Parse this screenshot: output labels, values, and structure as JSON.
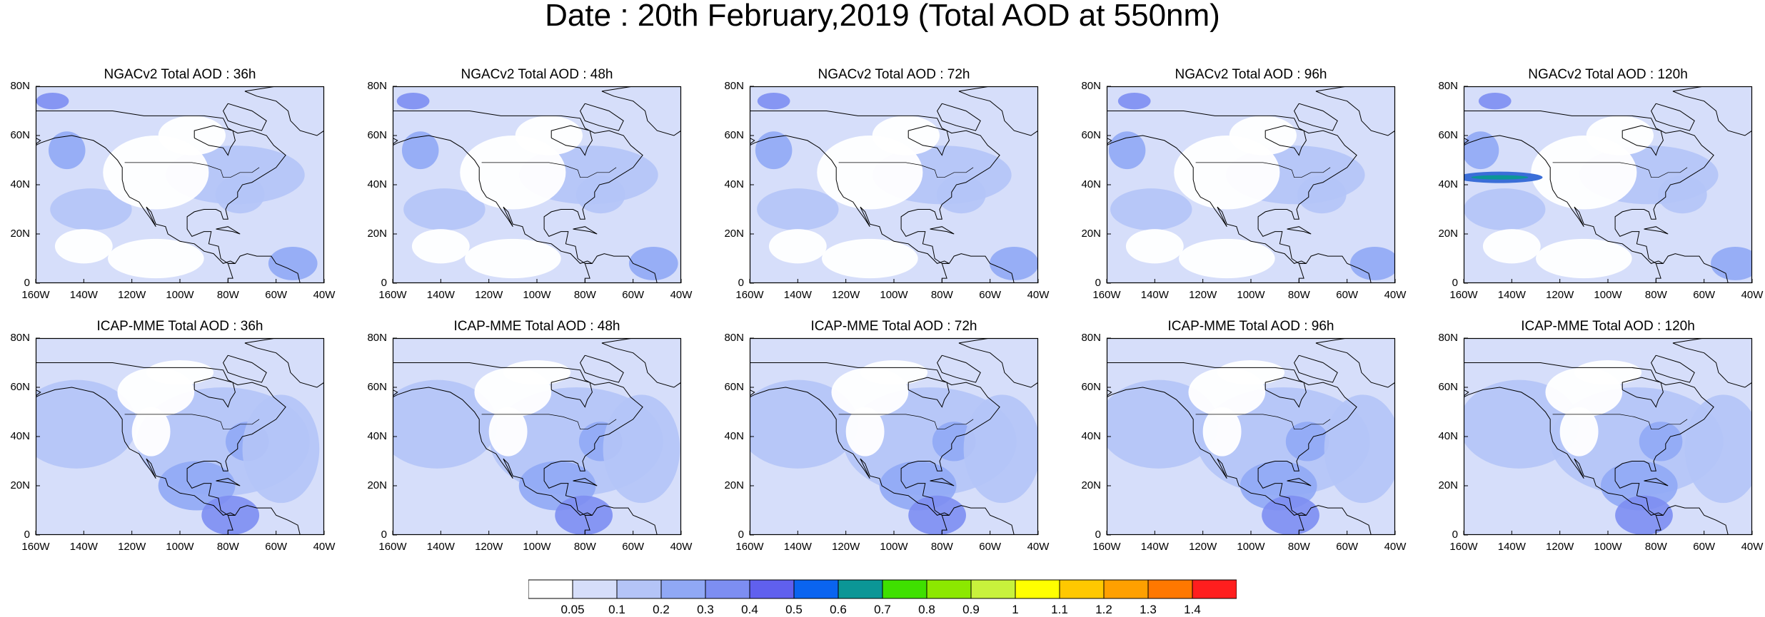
{
  "title": "Date : 20th February,2019 (Total AOD at 550nm)",
  "panels": [
    {
      "title": "NGACv2 Total AOD : 36h",
      "model": "NGAC",
      "hour": 36
    },
    {
      "title": "NGACv2 Total AOD : 48h",
      "model": "NGAC",
      "hour": 48
    },
    {
      "title": "NGACv2 Total AOD : 72h",
      "model": "NGAC",
      "hour": 72
    },
    {
      "title": "NGACv2 Total AOD : 96h",
      "model": "NGAC",
      "hour": 96
    },
    {
      "title": "NGACv2 Total AOD : 120h",
      "model": "NGAC",
      "hour": 120
    },
    {
      "title": "ICAP-MME Total AOD : 36h",
      "model": "ICAP",
      "hour": 36
    },
    {
      "title": "ICAP-MME Total AOD : 48h",
      "model": "ICAP",
      "hour": 48
    },
    {
      "title": "ICAP-MME Total AOD : 72h",
      "model": "ICAP",
      "hour": 72
    },
    {
      "title": "ICAP-MME Total AOD : 96h",
      "model": "ICAP",
      "hour": 96
    },
    {
      "title": "ICAP-MME Total AOD : 120h",
      "model": "ICAP",
      "hour": 120
    }
  ],
  "lat_labels": [
    "80N",
    "60N",
    "40N",
    "20N",
    "0"
  ],
  "lon_labels": [
    "160W",
    "140W",
    "120W",
    "100W",
    "80W",
    "60W",
    "40W"
  ],
  "colorbar": {
    "colors": [
      "#ffffff",
      "#d6defa",
      "#b4c4f7",
      "#90a8f5",
      "#7d8ef2",
      "#6060ee",
      "#0a64f0",
      "#0b9696",
      "#3fe000",
      "#8ce800",
      "#c8f23c",
      "#ffff00",
      "#ffc800",
      "#ffa000",
      "#ff7800",
      "#ff1e1e"
    ],
    "labels": [
      "0.05",
      "0.1",
      "0.2",
      "0.3",
      "0.4",
      "0.5",
      "0.6",
      "0.7",
      "0.8",
      "0.9",
      "1",
      "1.1",
      "1.2",
      "1.3",
      "1.4"
    ]
  },
  "colors": {
    "land_outline": "#000000",
    "base_fill": "#d6defa",
    "mid_fill": "#b4c4f7",
    "high_fill": "#90a8f5",
    "peak_fill": "#7d8ef2",
    "plume_fill": "#3a6ed8",
    "plume_core": "#0b9696"
  }
}
